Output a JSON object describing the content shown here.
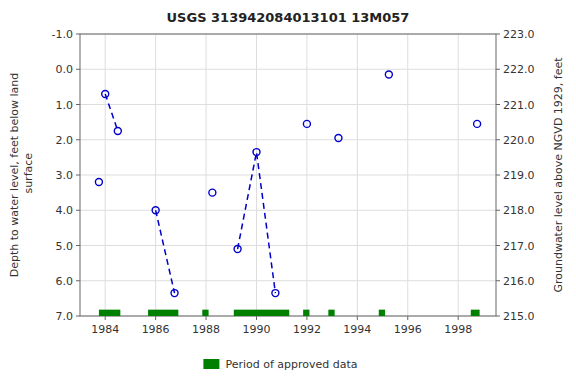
{
  "chart_data": {
    "type": "line",
    "title": "USGS 313942084013101 13M057",
    "y_label": "Depth to water level, feet below land\n surface",
    "y2_label": "Groundwater level above NGVD 1929, feet",
    "xlim": [
      1983.0,
      1999.5
    ],
    "xticks": [
      1984,
      1986,
      1988,
      1990,
      1992,
      1994,
      1996,
      1998
    ],
    "ylim": [
      7.0,
      -1.0
    ],
    "yticks": [
      {
        "value": -1.0,
        "label": "-1.0"
      },
      {
        "value": 0.0,
        "label": "0.0"
      },
      {
        "value": 1.0,
        "label": "1.0"
      },
      {
        "value": 2.0,
        "label": "2.0"
      },
      {
        "value": 3.0,
        "label": "3.0"
      },
      {
        "value": 4.0,
        "label": "4.0"
      },
      {
        "value": 5.0,
        "label": "5.0"
      },
      {
        "value": 6.0,
        "label": "6.0"
      },
      {
        "value": 7.0,
        "label": "7.0"
      }
    ],
    "y2lim": [
      215.0,
      223.0
    ],
    "y2ticks": [
      {
        "value": 215.0,
        "label": "215.0"
      },
      {
        "value": 216.0,
        "label": "216.0"
      },
      {
        "value": 217.0,
        "label": "217.0"
      },
      {
        "value": 218.0,
        "label": "218.0"
      },
      {
        "value": 219.0,
        "label": "219.0"
      },
      {
        "value": 220.0,
        "label": "220.0"
      },
      {
        "value": 221.0,
        "label": "221.0"
      },
      {
        "value": 222.0,
        "label": "222.0"
      },
      {
        "value": 223.0,
        "label": "223.0"
      }
    ],
    "grid": true,
    "legend": "bottom",
    "series": [
      {
        "type": "line",
        "color": "#0000cc",
        "marker": "circle",
        "line_style": "dashed",
        "x": [
          1984.0,
          1984.5,
          null,
          1986.0,
          1986.75,
          null,
          1989.25,
          1990.0,
          1990.75
        ],
        "values": [
          0.7,
          1.75,
          null,
          4.0,
          6.35,
          null,
          5.1,
          2.35,
          6.35
        ]
      },
      {
        "type": "scatter",
        "color": "#0000cc",
        "marker": "circle",
        "x": [
          1983.75,
          1988.25,
          1992.0,
          1993.25,
          1995.25,
          1998.75
        ],
        "values": [
          3.2,
          3.5,
          1.55,
          1.95,
          0.15,
          1.55
        ]
      },
      {
        "type": "span",
        "name": "Period of approved data",
        "color": "#008000",
        "x_start": [
          1983.75,
          1985.7,
          1987.85,
          1989.1,
          1991.85,
          1992.85,
          1994.85,
          1998.5
        ],
        "x_end": [
          1984.6,
          1986.9,
          1988.1,
          1991.3,
          1992.1,
          1993.1,
          1995.1,
          1998.85
        ],
        "y_range": [
          6.82,
          7.0
        ]
      }
    ]
  }
}
